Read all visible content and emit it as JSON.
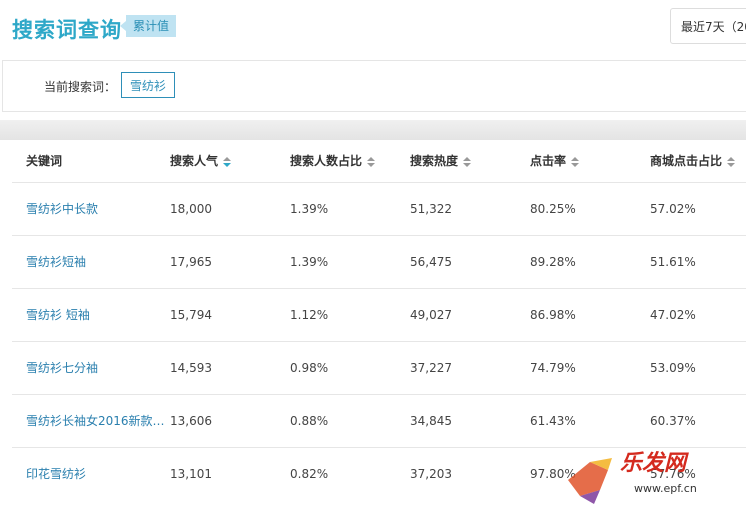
{
  "header": {
    "title": "搜索词查询",
    "tag": "累计值",
    "date_range": "最近7天（20"
  },
  "query": {
    "label": "当前搜索词：",
    "keyword": "雪纺衫"
  },
  "table": {
    "columns": [
      "关键词",
      "搜索人气",
      "搜索人数占比",
      "搜索热度",
      "点击率",
      "商城点击占比"
    ],
    "rows": [
      [
        "雪纺衫中长款",
        "18,000",
        "1.39%",
        "51,322",
        "80.25%",
        "57.02%"
      ],
      [
        "雪纺衫短袖",
        "17,965",
        "1.39%",
        "56,475",
        "89.28%",
        "51.61%"
      ],
      [
        "雪纺衫 短袖",
        "15,794",
        "1.12%",
        "49,027",
        "86.98%",
        "47.02%"
      ],
      [
        "雪纺衫七分袖",
        "14,593",
        "0.98%",
        "37,227",
        "74.79%",
        "53.09%"
      ],
      [
        "雪纺衫长袖女2016新款…",
        "13,606",
        "0.88%",
        "34,845",
        "61.43%",
        "60.37%"
      ],
      [
        "印花雪纺衫",
        "13,101",
        "0.82%",
        "37,203",
        "97.80%",
        "57.76%"
      ]
    ]
  },
  "watermark": {
    "logo": "乐发网",
    "url": "www.epf.cn"
  }
}
